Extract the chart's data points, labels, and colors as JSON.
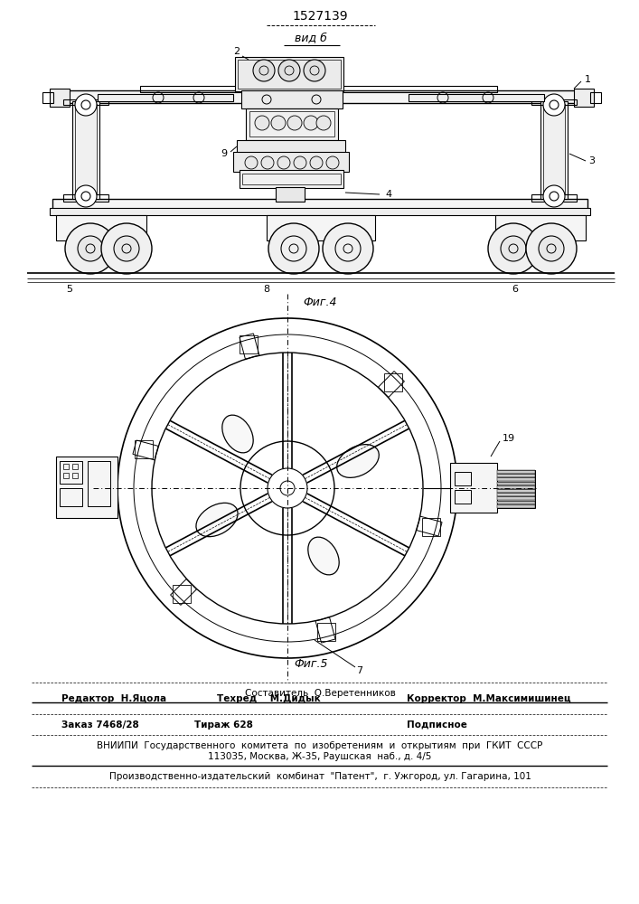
{
  "patent_number": "1527139",
  "fig4_label": "Фиг.4",
  "fig5_label": "Фиг.5",
  "vidb_label": "вид б",
  "label_1": "1",
  "label_2": "2",
  "label_3": "3",
  "label_4": "4",
  "label_5": "5",
  "label_6": "6",
  "label_7": "7",
  "label_8": "8",
  "label_9": "9",
  "label_19": "19",
  "footer_sestavitel": "Составитель  О.Веретенников",
  "footer_redaktor": "Редактор  Н.Яцола",
  "footer_tehred": "Техред    М.Дидык",
  "footer_korrektor": "Корректор  М.Максимишинец",
  "footer_zakaz": "Заказ 7468/28",
  "footer_tirazh": "Тираж 628",
  "footer_podpisnoe": "Подписное",
  "footer_vniip1": "ВНИИПИ  Государственного  комитета  по  изобретениям  и  открытиям  при  ГКИТ  СССР",
  "footer_vniip2": "113035, Москва, Ж-35, Раушская  наб., д. 4/5",
  "footer_patent": "Производственно-издательский  комбинат  \"Патент\",  г. Ужгород, ул. Гагарина, 101",
  "bg_color": "#ffffff",
  "line_color": "#000000"
}
